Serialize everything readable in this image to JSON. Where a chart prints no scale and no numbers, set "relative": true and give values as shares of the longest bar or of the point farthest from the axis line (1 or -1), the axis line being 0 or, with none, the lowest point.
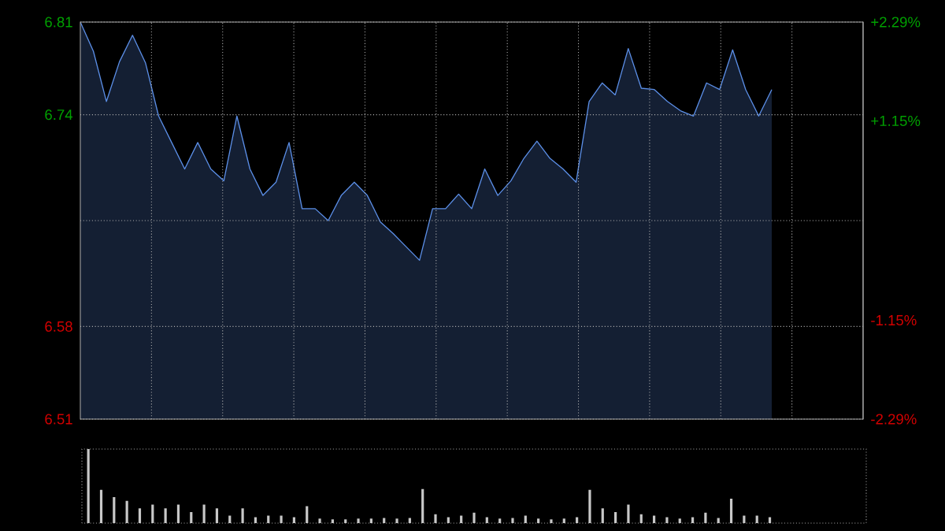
{
  "chart_data": [
    {
      "type": "area",
      "categories": [
        null,
        null,
        null,
        null,
        null,
        null,
        null,
        null,
        null,
        null,
        null,
        null,
        null,
        null,
        null,
        null,
        null,
        null,
        null,
        null,
        null,
        null,
        null,
        null,
        null,
        null,
        null,
        null,
        null,
        null,
        null,
        null,
        null,
        null,
        null,
        null,
        null,
        null,
        null,
        null,
        null,
        null,
        null,
        null,
        null,
        null,
        null,
        null,
        null,
        null,
        null,
        null,
        null,
        null,
        null,
        null,
        null,
        null,
        null,
        null,
        null
      ],
      "series": [
        {
          "color": "#5b8ee6",
          "values": [
            6.81,
            6.788,
            6.75,
            6.78,
            6.8,
            6.779,
            6.739,
            6.719,
            6.699,
            6.719,
            6.699,
            6.69,
            6.739,
            6.699,
            6.679,
            6.689,
            6.719,
            6.669,
            6.669,
            6.66,
            6.679,
            6.689,
            6.679,
            6.659,
            6.65,
            6.64,
            6.63,
            6.669,
            6.669,
            6.68,
            6.669,
            6.699,
            6.679,
            6.69,
            6.707,
            6.72,
            6.707,
            6.699,
            6.689,
            6.75,
            6.764,
            6.755,
            6.79,
            6.76,
            6.759,
            6.75,
            6.743,
            6.739,
            6.764,
            6.759,
            6.789,
            6.759,
            6.739,
            6.759,
            null,
            null,
            null,
            null,
            null,
            null,
            null
          ]
        }
      ],
      "ylim": [
        6.51,
        6.81
      ],
      "yticks": [
        6.51,
        6.58,
        {
          "value": 6.66,
          "label": null
        },
        6.74,
        6.81
      ],
      "y2lim": [
        -2.29,
        2.29
      ],
      "y2ticks": [
        {
          "value": -2.29,
          "label": "-2.29%"
        },
        {
          "value": -1.15,
          "label": "-1.15%"
        },
        {
          "value": 0,
          "label": null
        },
        {
          "value": 1.15,
          "label": "+1.15%"
        },
        {
          "value": 2.29,
          "label": "+2.29%"
        }
      ],
      "grid": true,
      "tick_labels": "y"
    },
    {
      "type": "bar",
      "relative": true,
      "tick_labels": false,
      "color": "#c8c8c8",
      "categories": [
        null,
        null,
        null,
        null,
        null,
        null,
        null,
        null,
        null,
        null,
        null,
        null,
        null,
        null,
        null,
        null,
        null,
        null,
        null,
        null,
        null,
        null,
        null,
        null,
        null,
        null,
        null,
        null,
        null,
        null,
        null,
        null,
        null,
        null,
        null,
        null,
        null,
        null,
        null,
        null,
        null,
        null,
        null,
        null,
        null,
        null,
        null,
        null,
        null,
        null,
        null,
        null,
        null,
        null,
        null,
        null,
        null,
        null,
        null,
        null,
        null
      ],
      "values": [
        1.0,
        0.45,
        0.35,
        0.3,
        0.2,
        0.25,
        0.2,
        0.25,
        0.15,
        0.25,
        0.2,
        0.1,
        0.2,
        0.08,
        0.1,
        0.1,
        0.08,
        0.23,
        0.06,
        0.05,
        0.05,
        0.06,
        0.06,
        0.07,
        0.06,
        0.07,
        0.46,
        0.12,
        0.08,
        0.1,
        0.14,
        0.08,
        0.06,
        0.07,
        0.1,
        0.06,
        0.05,
        0.06,
        0.08,
        0.45,
        0.2,
        0.15,
        0.25,
        0.12,
        0.1,
        0.08,
        0.06,
        0.08,
        0.14,
        0.07,
        0.33,
        0.1,
        0.1,
        0.08,
        null,
        null,
        null,
        null,
        null,
        null,
        null
      ]
    }
  ]
}
